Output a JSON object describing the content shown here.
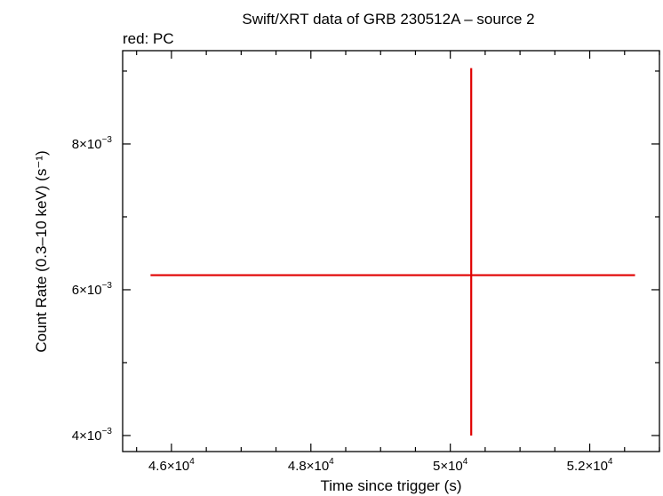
{
  "chart_data": {
    "type": "scatter",
    "title": "Swift/XRT data of GRB 230512A – source 2",
    "subtitle": "red: PC",
    "xlabel": "Time since trigger (s)",
    "ylabel": "Count Rate (0.3–10 keV) (s⁻¹)",
    "xlim": [
      45300,
      53000
    ],
    "ylim": [
      0.00378,
      0.00928
    ],
    "x_ticks": [
      {
        "value": 46000,
        "mantissa": "4.6",
        "exponent": "4"
      },
      {
        "value": 48000,
        "mantissa": "4.8",
        "exponent": "4"
      },
      {
        "value": 50000,
        "mantissa": "5",
        "exponent": "4"
      },
      {
        "value": 52000,
        "mantissa": "5.2",
        "exponent": "4"
      }
    ],
    "y_ticks": [
      {
        "value": 0.004,
        "mantissa": "4",
        "exponent": "−3"
      },
      {
        "value": 0.006,
        "mantissa": "6",
        "exponent": "−3"
      },
      {
        "value": 0.008,
        "mantissa": "8",
        "exponent": "−3"
      }
    ],
    "series": [
      {
        "color": "#e00000",
        "points": [
          {
            "x": 50300,
            "x_low": 45700,
            "x_high": 52650,
            "y": 0.0062,
            "y_low": 0.004,
            "y_high": 0.00904
          }
        ]
      }
    ],
    "grid": false,
    "legend": "none"
  }
}
